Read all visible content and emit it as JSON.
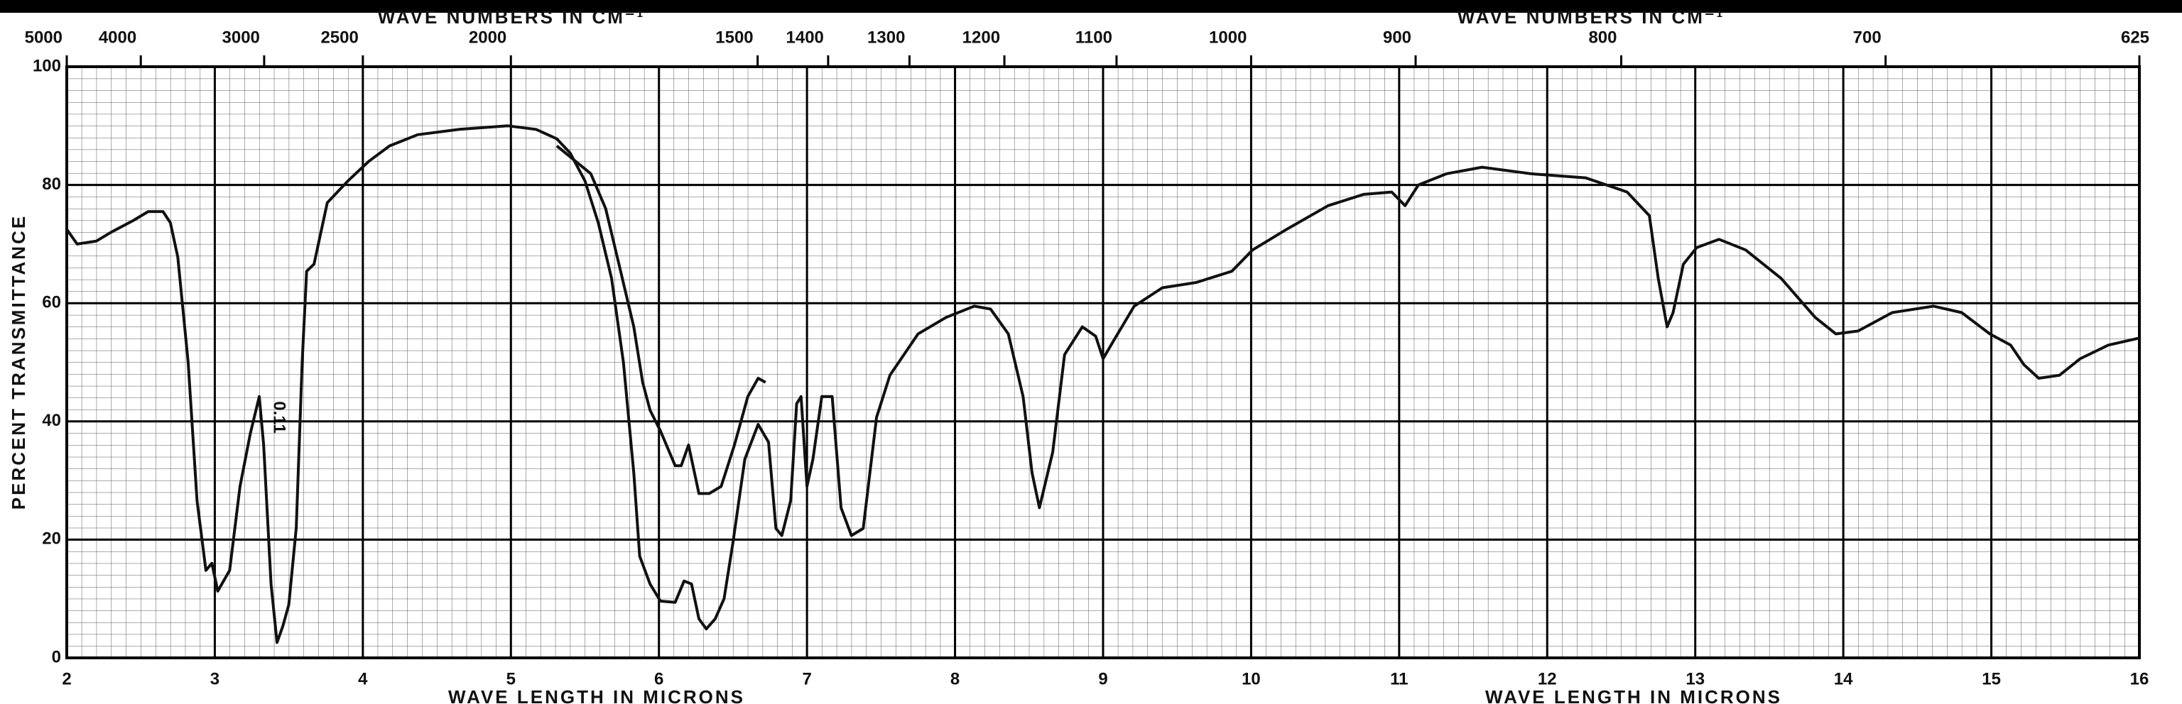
{
  "chart_data": {
    "type": "line",
    "top_title_left": "WAVE NUMBERS IN CM⁻¹",
    "top_title_right": "WAVE NUMBERS IN CM⁻¹",
    "x_label_left": "WAVE LENGTH IN MICRONS",
    "x_label_right": "WAVE LENGTH IN MICRONS",
    "y_label": "PERCENT TRANSMITTANCE",
    "annotation": "0.11",
    "xlim": [
      2,
      16
    ],
    "xticks": [
      2,
      3,
      4,
      5,
      6,
      7,
      8,
      9,
      10,
      11,
      12,
      13,
      14,
      15,
      16
    ],
    "x2ticks": [
      5000,
      4000,
      3000,
      2500,
      2000,
      1500,
      1400,
      1300,
      1200,
      1100,
      1000,
      900,
      800,
      700,
      625
    ],
    "ylim": [
      0,
      100
    ],
    "yticks": [
      0,
      20,
      40,
      60,
      80,
      100
    ],
    "grid": true,
    "series": [
      {
        "color": "#111111",
        "x": [
          2.0,
          2.07,
          2.2,
          2.3,
          2.45,
          2.55,
          2.65,
          2.7,
          2.75,
          2.82,
          2.88,
          2.94,
          2.98,
          3.02,
          3.1,
          3.17,
          3.24,
          3.3,
          3.33,
          3.38,
          3.42,
          3.46,
          3.5,
          3.55,
          3.59,
          3.62,
          3.67,
          3.76,
          3.9,
          4.04,
          4.18,
          4.37,
          4.65,
          4.98,
          5.17,
          5.31,
          5.4,
          5.5,
          5.59,
          5.68,
          5.76,
          5.83,
          5.87,
          5.94,
          6.01,
          6.11,
          6.17,
          6.22,
          6.27,
          6.32,
          6.38,
          6.44,
          6.5,
          6.58,
          6.67,
          6.74,
          6.79,
          6.83,
          6.89,
          6.93,
          6.96,
          7.0,
          7.04,
          7.1,
          7.17,
          7.23,
          7.3,
          7.38,
          7.47,
          7.56,
          7.75,
          7.94,
          8.13,
          8.24,
          8.36,
          8.46,
          8.52,
          8.57,
          8.66,
          8.74,
          8.86,
          8.95,
          9.0,
          9.07,
          9.21,
          9.4,
          9.63,
          9.87,
          10.01,
          10.24,
          10.52,
          10.76,
          10.95,
          11.04,
          11.13,
          11.32,
          11.56,
          11.89,
          12.26,
          12.54,
          12.69,
          12.75,
          12.81,
          12.85,
          12.92,
          13.01,
          13.16,
          13.34,
          13.58,
          13.81,
          13.95,
          14.1,
          14.33,
          14.61,
          14.8,
          14.99,
          15.13,
          15.22,
          15.32,
          15.46,
          15.6,
          15.79,
          16.0
        ],
        "values": [
          72.5,
          70,
          70.5,
          72,
          74,
          75.5,
          75.5,
          73.6,
          67.8,
          50,
          26.6,
          14.8,
          16,
          11.3,
          14.8,
          29,
          38,
          44.2,
          36,
          12.5,
          2.6,
          5.4,
          9,
          22,
          50,
          65.4,
          66.6,
          77,
          80.7,
          84,
          86.6,
          88.5,
          89.4,
          90,
          89.4,
          87.8,
          85.4,
          80.7,
          73.6,
          64.2,
          50,
          31.3,
          17.2,
          12.5,
          9.6,
          9.4,
          13,
          12.5,
          6.6,
          4.9,
          6.6,
          10,
          19.5,
          33.6,
          39.5,
          36.5,
          21.9,
          20.7,
          26.6,
          43,
          44.2,
          29,
          33.6,
          44.2,
          44.2,
          25.4,
          20.7,
          21.9,
          40.7,
          47.8,
          54.8,
          57.6,
          59.5,
          59,
          54.8,
          44.2,
          31.3,
          25.4,
          34.8,
          51.3,
          56,
          54.4,
          50.6,
          53.6,
          59.5,
          62.6,
          63.5,
          65.4,
          69,
          72.5,
          76.5,
          78.4,
          78.8,
          76.5,
          80,
          81.9,
          83,
          81.9,
          81.2,
          78.8,
          74.8,
          64.2,
          56,
          58.4,
          66.6,
          69.4,
          70.8,
          69,
          64.2,
          57.6,
          54.8,
          55.3,
          58.4,
          59.5,
          58.4,
          54.8,
          52.9,
          49.6,
          47.3,
          47.8,
          50.6,
          52.9,
          54.1
        ]
      },
      {
        "color": "#111111",
        "x": [
          5.31,
          5.54,
          5.64,
          5.73,
          5.83,
          5.89,
          5.94,
          6.01,
          6.11,
          6.15,
          6.2,
          6.27,
          6.34,
          6.42,
          6.51,
          6.6,
          6.67,
          6.72
        ],
        "values": [
          86.6,
          81.9,
          76,
          66.6,
          56,
          46.6,
          41.9,
          38.4,
          32.5,
          32.5,
          36,
          27.8,
          27.8,
          29,
          36,
          44.2,
          47.3,
          46.6
        ]
      }
    ]
  }
}
